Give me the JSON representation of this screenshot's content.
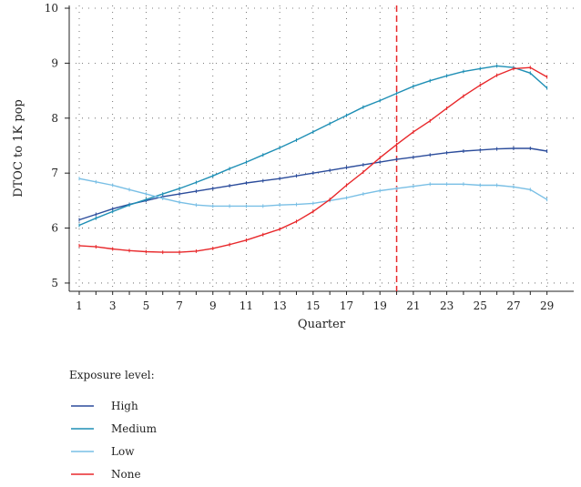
{
  "chart_data": {
    "type": "line",
    "xlabel": "Quarter",
    "ylabel": "DTOC to 1K pop",
    "xlim": [
      0.4,
      30.6
    ],
    "ylim": [
      4.85,
      10.05
    ],
    "xticks": [
      1,
      3,
      5,
      7,
      9,
      11,
      13,
      15,
      17,
      19,
      21,
      23,
      25,
      27,
      29
    ],
    "yticks": [
      5,
      6,
      7,
      8,
      9,
      10
    ],
    "grid": true,
    "reference_line": {
      "x": 20,
      "color": "#e8282b",
      "style": "dashed"
    },
    "legend": {
      "title": "Exposure level:",
      "placement": "bottom-left"
    },
    "x": [
      1,
      2,
      3,
      4,
      5,
      6,
      7,
      8,
      9,
      10,
      11,
      12,
      13,
      14,
      15,
      16,
      17,
      18,
      19,
      20,
      21,
      22,
      23,
      24,
      25,
      26,
      27,
      28,
      29
    ],
    "series": [
      {
        "name": "High",
        "color": "#2b4c9b",
        "values": [
          6.15,
          6.25,
          6.35,
          6.43,
          6.5,
          6.57,
          6.62,
          6.67,
          6.72,
          6.77,
          6.82,
          6.86,
          6.9,
          6.95,
          7.0,
          7.05,
          7.1,
          7.15,
          7.2,
          7.25,
          7.29,
          7.33,
          7.37,
          7.4,
          7.42,
          7.44,
          7.45,
          7.45,
          7.4
        ]
      },
      {
        "name": "Medium",
        "color": "#1f8fb5",
        "values": [
          6.05,
          6.18,
          6.3,
          6.42,
          6.52,
          6.62,
          6.72,
          6.83,
          6.95,
          7.08,
          7.2,
          7.33,
          7.46,
          7.6,
          7.75,
          7.9,
          8.05,
          8.2,
          8.32,
          8.45,
          8.58,
          8.68,
          8.77,
          8.85,
          8.9,
          8.95,
          8.92,
          8.82,
          8.55
        ]
      },
      {
        "name": "Low",
        "color": "#79bfe5",
        "values": [
          6.9,
          6.84,
          6.78,
          6.7,
          6.62,
          6.54,
          6.47,
          6.42,
          6.4,
          6.4,
          6.4,
          6.4,
          6.42,
          6.43,
          6.45,
          6.5,
          6.55,
          6.62,
          6.68,
          6.72,
          6.76,
          6.8,
          6.8,
          6.8,
          6.78,
          6.78,
          6.75,
          6.7,
          6.52
        ]
      },
      {
        "name": "None",
        "color": "#e8282b",
        "values": [
          5.68,
          5.66,
          5.62,
          5.59,
          5.57,
          5.56,
          5.56,
          5.58,
          5.63,
          5.7,
          5.78,
          5.88,
          5.98,
          6.12,
          6.3,
          6.52,
          6.78,
          7.02,
          7.28,
          7.52,
          7.75,
          7.95,
          8.18,
          8.4,
          8.6,
          8.78,
          8.9,
          8.92,
          8.75
        ]
      }
    ]
  }
}
